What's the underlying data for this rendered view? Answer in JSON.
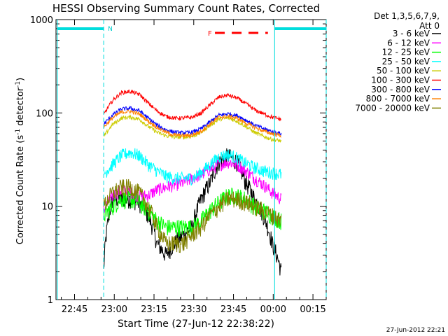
{
  "chart_data": {
    "type": "line",
    "title": "HESSI Observing Summary Count Rates, Corrected",
    "xlabel": "Start Time (27-Jun-12 22:38:22)",
    "ylabel_main": "Corrected Count Rate (s",
    "ylabel_sup1": "-1",
    "ylabel_mid": " detector",
    "ylabel_sup2": "-1",
    "ylabel_end": ")",
    "y_scale": "log",
    "ylim": [
      1,
      1000
    ],
    "xlim": [
      "22:38",
      "00:20"
    ],
    "x_tick_labels": [
      "22:45",
      "23:00",
      "23:15",
      "23:30",
      "23:45",
      "00:00",
      "00:15"
    ],
    "y_tick_labels": [
      "1",
      "10",
      "100",
      "1000"
    ],
    "legend_header": [
      "Det 1,3,5,6,7,9,",
      "Att 0"
    ],
    "legend_position": "right",
    "timestamp": "27-Jun-2012 22:21",
    "flag_labels": {
      "night": "N",
      "flare": "F"
    },
    "night_bars": [
      {
        "start": "22:38",
        "end": "22:56"
      },
      {
        "start": "00:00",
        "end": "00:20"
      }
    ],
    "series": [
      {
        "name": "3 - 6 keV",
        "color": "#000000",
        "profile": "low",
        "values": [
          2,
          12,
          12,
          12,
          11,
          8,
          4,
          3,
          4,
          5,
          6,
          12,
          18,
          30,
          35,
          30,
          18,
          12,
          8,
          4,
          2
        ]
      },
      {
        "name": "6 - 12 keV",
        "color": "#ff00ff",
        "profile": "mid",
        "values": [
          9,
          13,
          15,
          14,
          13,
          13,
          15,
          16,
          17,
          18,
          20,
          22,
          25,
          28,
          30,
          28,
          24,
          20,
          17,
          14,
          12
        ]
      },
      {
        "name": "12 - 25 keV",
        "color": "#00ff00",
        "profile": "low",
        "values": [
          8,
          10,
          12,
          12,
          11,
          9,
          7,
          6,
          6,
          6,
          6,
          7,
          9,
          11,
          13,
          13,
          12,
          10,
          9,
          8,
          7
        ]
      },
      {
        "name": "25 - 50 keV",
        "color": "#00ffff",
        "profile": "mid",
        "values": [
          22,
          28,
          35,
          38,
          35,
          28,
          24,
          21,
          20,
          20,
          20,
          23,
          28,
          34,
          36,
          33,
          29,
          26,
          24,
          23,
          22
        ]
      },
      {
        "name": "50 - 100 keV",
        "color": "#cccc00",
        "profile": "high",
        "values": [
          55,
          75,
          88,
          90,
          86,
          72,
          62,
          57,
          55,
          55,
          56,
          62,
          74,
          86,
          88,
          82,
          72,
          62,
          56,
          52,
          50
        ]
      },
      {
        "name": "100 - 300 keV",
        "color": "#ff0000",
        "profile": "high",
        "values": [
          95,
          135,
          165,
          170,
          158,
          128,
          105,
          92,
          88,
          88,
          90,
          100,
          122,
          148,
          155,
          145,
          126,
          108,
          98,
          90,
          85
        ]
      },
      {
        "name": "300 - 800 keV",
        "color": "#0000ff",
        "profile": "high",
        "values": [
          75,
          95,
          110,
          112,
          106,
          88,
          74,
          66,
          62,
          61,
          62,
          68,
          80,
          95,
          98,
          94,
          84,
          74,
          68,
          63,
          60
        ]
      },
      {
        "name": "800 - 7000 keV",
        "color": "#ff8000",
        "profile": "high",
        "values": [
          70,
          88,
          102,
          104,
          98,
          82,
          70,
          62,
          58,
          57,
          58,
          64,
          76,
          90,
          92,
          88,
          78,
          70,
          64,
          60,
          57
        ]
      },
      {
        "name": "7000 - 20000 keV",
        "color": "#808000",
        "profile": "low",
        "values": [
          10,
          14,
          16,
          16,
          14,
          10,
          6,
          4,
          4,
          4,
          5,
          6,
          8,
          10,
          12,
          12,
          11,
          10,
          9,
          8,
          7
        ]
      }
    ]
  }
}
